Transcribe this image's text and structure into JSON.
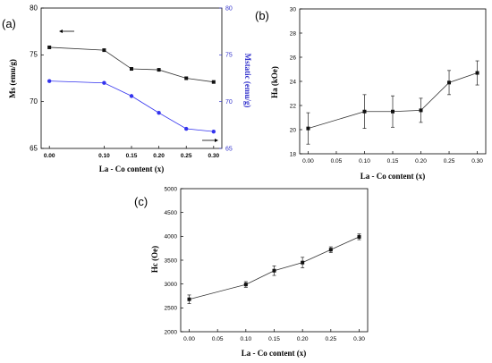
{
  "chart_data": [
    {
      "type": "line",
      "panel_label": "(a)",
      "xlabel": "La - Co content (x)",
      "x": [
        0.0,
        0.1,
        0.15,
        0.2,
        0.25,
        0.3
      ],
      "xticks": [
        "0.00",
        "0.10",
        "0.15",
        "0.20",
        "0.25",
        "0.30"
      ],
      "xlim": [
        -0.015,
        0.315
      ],
      "ylabel": "Ms (emu/g)",
      "ylim": [
        65,
        80
      ],
      "yticks": [
        "65",
        "70",
        "75",
        "80"
      ],
      "y2label": "Mstatic (emu/g)",
      "y2lim": [
        65,
        80
      ],
      "y2ticks": [
        "65",
        "70",
        "75",
        "80"
      ],
      "y2color": "#3333cc",
      "grid": false,
      "series": [
        {
          "values": [
            75.8,
            75.5,
            73.5,
            73.4,
            72.5,
            72.1
          ],
          "color": "#333333",
          "marker": "square",
          "axis": "left"
        },
        {
          "values": [
            72.2,
            72.0,
            70.6,
            68.8,
            67.1,
            66.8
          ],
          "color": "#3333ee",
          "marker": "circle",
          "axis": "right"
        }
      ]
    },
    {
      "type": "line",
      "panel_label": "(b)",
      "xlabel": "La - Co content (x)",
      "x": [
        0.0,
        0.1,
        0.15,
        0.2,
        0.25,
        0.3
      ],
      "xticks": [
        "0.00",
        "0.05",
        "0.10",
        "0.15",
        "0.20",
        "0.25",
        "0.30"
      ],
      "xlim": [
        -0.015,
        0.315
      ],
      "ylabel": "Ha (kOe)",
      "ylim": [
        18,
        30
      ],
      "yticks": [
        "18",
        "20",
        "22",
        "24",
        "26",
        "28",
        "30"
      ],
      "grid": false,
      "series": [
        {
          "values": [
            20.1,
            21.5,
            21.5,
            21.6,
            23.9,
            24.7
          ],
          "errors": [
            1.3,
            1.4,
            1.3,
            1.0,
            1.0,
            1.0
          ],
          "color": "#333333",
          "marker": "square"
        }
      ]
    },
    {
      "type": "line",
      "panel_label": "(c)",
      "xlabel": "La - Co content (x)",
      "x": [
        0.0,
        0.1,
        0.15,
        0.2,
        0.25,
        0.3
      ],
      "xticks": [
        "0.00",
        "0.05",
        "0.10",
        "0.15",
        "0.20",
        "0.25",
        "0.30"
      ],
      "xlim": [
        -0.015,
        0.315
      ],
      "ylabel": "Hc (Oe)",
      "ylim": [
        2000,
        5000
      ],
      "yticks": [
        "2000",
        "2500",
        "3000",
        "3500",
        "4000",
        "4500",
        "5000"
      ],
      "grid": false,
      "series": [
        {
          "values": [
            2680,
            2990,
            3280,
            3450,
            3720,
            3990
          ],
          "errors": [
            90,
            60,
            100,
            110,
            60,
            60
          ],
          "color": "#333333",
          "marker": "square"
        }
      ]
    }
  ]
}
